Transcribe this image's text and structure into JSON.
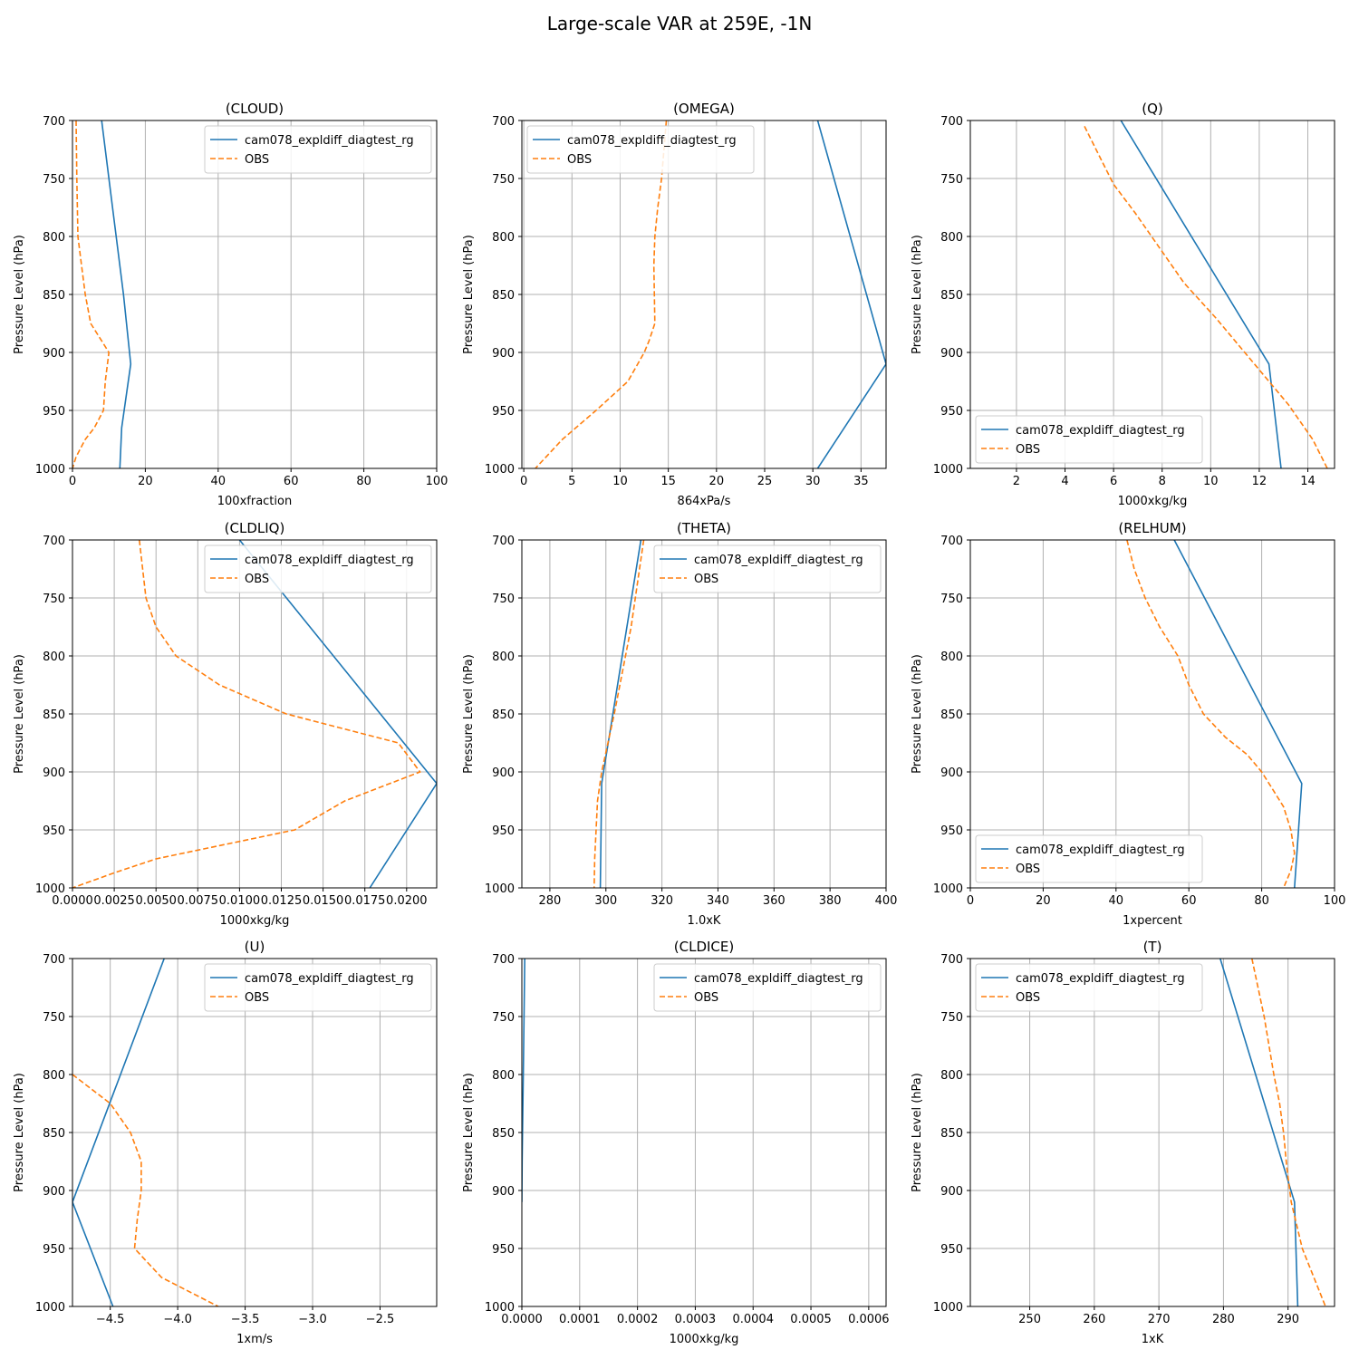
{
  "figure": {
    "title": "Large-scale VAR at 259E, -1N",
    "colors": {
      "model": "#1f77b4",
      "obs": "#ff7f0e",
      "grid": "#b0b0b0"
    }
  },
  "chart_data": [
    {
      "type": "line",
      "title": "(CLOUD)",
      "xlabel": "100xfraction",
      "ylabel": "Pressure Level (hPa)",
      "xlim": [
        0,
        100
      ],
      "ylim": [
        1000,
        700
      ],
      "xticks": [
        "0",
        "20",
        "40",
        "60",
        "80",
        "100"
      ],
      "yticks": [
        "700",
        "750",
        "800",
        "850",
        "900",
        "950",
        "1000"
      ],
      "grid": true,
      "legend": "top-right",
      "series": [
        {
          "name": "cam078_expldiff_diagtest_rg",
          "style": "solid",
          "x": [
            8,
            11,
            14,
            16,
            13.5,
            13
          ],
          "y": [
            700,
            775,
            850,
            910,
            965,
            1000
          ]
        },
        {
          "name": "OBS",
          "style": "dashed",
          "x": [
            1,
            1.2,
            1.5,
            2.5,
            3.5,
            5,
            8,
            10,
            9,
            8.5,
            6,
            3.5,
            1,
            0
          ],
          "y": [
            700,
            750,
            800,
            825,
            850,
            875,
            890,
            900,
            925,
            950,
            965,
            975,
            990,
            1000
          ]
        }
      ]
    },
    {
      "type": "line",
      "title": "(OMEGA)",
      "xlabel": "864xPa/s",
      "ylabel": "Pressure Level (hPa)",
      "xlim": [
        -0.2,
        37.6
      ],
      "ylim": [
        1000,
        700
      ],
      "xticks": [
        "0",
        "5",
        "10",
        "15",
        "20",
        "25",
        "30",
        "35"
      ],
      "yticks": [
        "700",
        "750",
        "800",
        "850",
        "900",
        "950",
        "1000"
      ],
      "grid": true,
      "legend": "top-left",
      "series": [
        {
          "name": "cam078_expldiff_diagtest_rg",
          "style": "solid",
          "x": [
            30.5,
            37.6,
            30.5
          ],
          "y": [
            700,
            910,
            1000
          ]
        },
        {
          "name": "OBS",
          "style": "dashed",
          "x": [
            14.8,
            14.3,
            13.9,
            13.6,
            13.5,
            13.6,
            13.0,
            12.5,
            10.8,
            7.5,
            4.0,
            1.2
          ],
          "y": [
            700,
            750,
            775,
            800,
            825,
            875,
            890,
            900,
            925,
            950,
            975,
            1000
          ]
        }
      ]
    },
    {
      "type": "line",
      "title": "(Q)",
      "xlabel": "1000xkg/kg",
      "ylabel": "Pressure Level (hPa)",
      "xlim": [
        0.1,
        15.1
      ],
      "ylim": [
        1000,
        700
      ],
      "xticks": [
        "2",
        "4",
        "6",
        "8",
        "10",
        "12",
        "14"
      ],
      "yticks": [
        "700",
        "750",
        "800",
        "850",
        "900",
        "950",
        "1000"
      ],
      "grid": true,
      "legend": "bottom-left",
      "series": [
        {
          "name": "cam078_expldiff_diagtest_rg",
          "style": "solid",
          "x": [
            6.3,
            12.4,
            12.9
          ],
          "y": [
            700,
            910,
            1000
          ]
        },
        {
          "name": "OBS",
          "style": "dashed",
          "x": [
            4.8,
            5.4,
            6.0,
            6.9,
            7.9,
            8.9,
            10.2,
            11.2,
            12.2,
            13.2,
            14.2,
            14.8
          ],
          "y": [
            705,
            730,
            755,
            780,
            810,
            840,
            870,
            895,
            920,
            945,
            975,
            1000
          ]
        }
      ]
    },
    {
      "type": "line",
      "title": "(CLDLIQ)",
      "xlabel": "1000xkg/kg",
      "ylabel": "Pressure Level (hPa)",
      "xlim": [
        0,
        0.0218
      ],
      "ylim": [
        1000,
        700
      ],
      "xticks": [
        "0.0000",
        "0.0025",
        "0.0050",
        "0.0075",
        "0.0100",
        "0.0125",
        "0.0150",
        "0.0175",
        "0.0200"
      ],
      "yticks": [
        "700",
        "750",
        "800",
        "850",
        "900",
        "950",
        "1000"
      ],
      "grid": true,
      "legend": "top-right",
      "series": [
        {
          "name": "cam078_expldiff_diagtest_rg",
          "style": "solid",
          "x": [
            0.01,
            0.0218,
            0.0178
          ],
          "y": [
            700,
            910,
            1000
          ]
        },
        {
          "name": "OBS",
          "style": "dashed",
          "x": [
            0.004,
            0.0044,
            0.005,
            0.0062,
            0.0088,
            0.0128,
            0.0195,
            0.0208,
            0.0163,
            0.0133,
            0.005,
            0.0025,
            0.0
          ],
          "y": [
            700,
            750,
            775,
            800,
            825,
            850,
            875,
            900,
            925,
            950,
            975,
            987,
            1000
          ]
        }
      ]
    },
    {
      "type": "line",
      "title": "(THETA)",
      "xlabel": "1.0xK",
      "ylabel": "Pressure Level (hPa)",
      "xlim": [
        270,
        400
      ],
      "ylim": [
        1000,
        700
      ],
      "xticks": [
        "280",
        "300",
        "320",
        "340",
        "360",
        "380",
        "400"
      ],
      "yticks": [
        "700",
        "750",
        "800",
        "850",
        "900",
        "950",
        "1000"
      ],
      "grid": true,
      "legend": "top-right",
      "series": [
        {
          "name": "cam078_expldiff_diagtest_rg",
          "style": "solid",
          "x": [
            312.5,
            298.5,
            298.0
          ],
          "y": [
            700,
            910,
            1000
          ]
        },
        {
          "name": "OBS",
          "style": "dashed",
          "x": [
            313.5,
            309,
            303,
            298.5,
            297,
            296,
            295.8
          ],
          "y": [
            700,
            775,
            850,
            900,
            925,
            975,
            1000
          ]
        }
      ]
    },
    {
      "type": "line",
      "title": "(RELHUM)",
      "xlabel": "1xpercent",
      "ylabel": "Pressure Level (hPa)",
      "xlim": [
        0,
        100
      ],
      "ylim": [
        1000,
        700
      ],
      "xticks": [
        "0",
        "20",
        "40",
        "60",
        "80",
        "100"
      ],
      "yticks": [
        "700",
        "750",
        "800",
        "850",
        "900",
        "950",
        "1000"
      ],
      "grid": true,
      "legend": "bottom-left",
      "series": [
        {
          "name": "cam078_expldiff_diagtest_rg",
          "style": "solid",
          "x": [
            56,
            91,
            89
          ],
          "y": [
            700,
            910,
            1000
          ]
        },
        {
          "name": "OBS",
          "style": "dashed",
          "x": [
            43,
            45,
            48,
            52,
            57,
            60,
            64,
            70,
            76,
            80,
            83,
            86,
            88,
            89,
            88,
            86
          ],
          "y": [
            700,
            725,
            750,
            775,
            800,
            825,
            850,
            870,
            885,
            900,
            915,
            930,
            950,
            970,
            985,
            1000
          ]
        }
      ]
    },
    {
      "type": "line",
      "title": "(U)",
      "xlabel": "1xm/s",
      "ylabel": "Pressure Level (hPa)",
      "xlim": [
        -4.78,
        -2.08
      ],
      "ylim": [
        1000,
        700
      ],
      "xticks": [
        "-4.5",
        "-4.0",
        "-3.5",
        "-3.0",
        "-2.5"
      ],
      "yticks": [
        "700",
        "750",
        "800",
        "850",
        "900",
        "950",
        "1000"
      ],
      "grid": true,
      "legend": "top-right",
      "series": [
        {
          "name": "cam078_expldiff_diagtest_rg",
          "style": "solid",
          "x": [
            -4.1,
            -4.78,
            -4.48
          ],
          "y": [
            700,
            910,
            1000
          ]
        },
        {
          "name": "OBS",
          "style": "dashed",
          "x": [
            -4.78,
            -4.5,
            -4.35,
            -4.27,
            -4.27,
            -4.3,
            -4.32,
            -4.12,
            -3.7
          ],
          "y": [
            800,
            825,
            850,
            875,
            900,
            925,
            950,
            975,
            1000
          ]
        }
      ]
    },
    {
      "type": "line",
      "title": "(CLDICE)",
      "xlabel": "1000xkg/kg",
      "ylabel": "Pressure Level (hPa)",
      "xlim": [
        0,
        0.00063
      ],
      "ylim": [
        1000,
        700
      ],
      "xticks": [
        "0.0000",
        "0.0001",
        "0.0002",
        "0.0003",
        "0.0004",
        "0.0005",
        "0.0006"
      ],
      "yticks": [
        "700",
        "750",
        "800",
        "850",
        "900",
        "950",
        "1000"
      ],
      "grid": true,
      "legend": "top-right",
      "series": [
        {
          "name": "cam078_expldiff_diagtest_rg",
          "style": "solid",
          "x": [
            5e-06,
            2.5e-06,
            5e-07,
            0.0
          ],
          "y": [
            700,
            800,
            875,
            910
          ]
        },
        {
          "name": "OBS",
          "style": "dashed",
          "x": [],
          "y": []
        }
      ]
    },
    {
      "type": "line",
      "title": "(T)",
      "xlabel": "1xK",
      "ylabel": "Pressure Level (hPa)",
      "xlim": [
        240.8,
        297.2
      ],
      "ylim": [
        1000,
        700
      ],
      "xticks": [
        "250",
        "260",
        "270",
        "280",
        "290"
      ],
      "yticks": [
        "700",
        "750",
        "800",
        "850",
        "900",
        "950",
        "1000"
      ],
      "grid": true,
      "legend": "top-left",
      "series": [
        {
          "name": "cam078_expldiff_diagtest_rg",
          "style": "solid",
          "x": [
            279.5,
            291.0,
            291.5
          ],
          "y": [
            700,
            910,
            1000
          ]
        },
        {
          "name": "OBS",
          "style": "dashed",
          "x": [
            284.4,
            286.3,
            287.8,
            288.7,
            289.3,
            289.8,
            290.5,
            292.2,
            294.0,
            295.8
          ],
          "y": [
            700,
            750,
            800,
            825,
            850,
            880,
            910,
            950,
            975,
            1000
          ]
        }
      ]
    }
  ]
}
